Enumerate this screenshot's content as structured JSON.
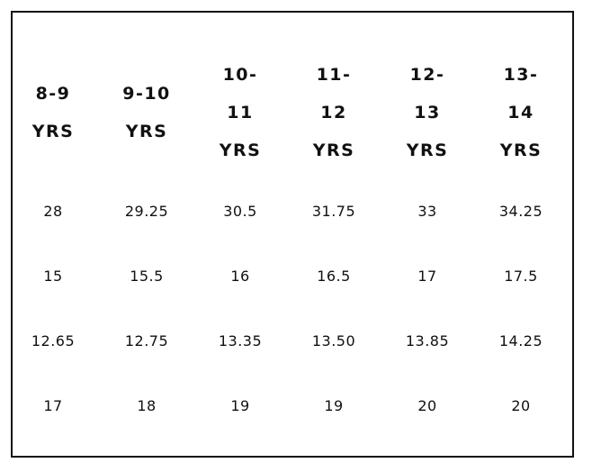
{
  "table": {
    "header": [
      "8-9 YRS",
      "9-10 YRS",
      "10-11 YRS",
      "11-12 YRS",
      "12-13 YRS",
      "13-14 YRS"
    ],
    "rows": [
      [
        "28",
        "29.25",
        "30.5",
        "31.75",
        "33",
        "34.25"
      ],
      [
        "15",
        "15.5",
        "16",
        "16.5",
        "17",
        "17.5"
      ],
      [
        "12.65",
        "12.75",
        "13.35",
        "13.50",
        "13.85",
        "14.25"
      ],
      [
        "17",
        "18",
        "19",
        "19",
        "20",
        "20"
      ]
    ]
  }
}
